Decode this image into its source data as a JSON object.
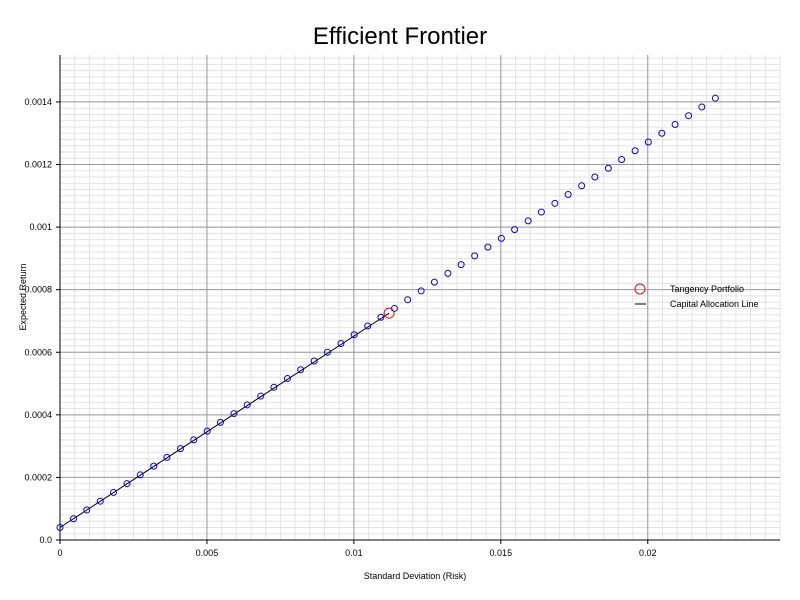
{
  "chart_data": {
    "type": "scatter",
    "title": "Efficient Frontier",
    "xlabel": "Standard Deviation (Risk)",
    "ylabel": "Expected Return",
    "xlim": [
      0,
      0.0245
    ],
    "ylim": [
      0,
      0.00155
    ],
    "x_ticks": [
      0,
      0.005,
      0.01,
      0.015,
      0.02
    ],
    "x_tick_labels": [
      "0",
      "0.005",
      "0.01",
      "0.015",
      "0.02"
    ],
    "y_ticks": [
      0,
      0.0002,
      0.0004,
      0.0006,
      0.0008,
      0.001,
      0.0012,
      0.0014
    ],
    "y_tick_labels": [
      "0.0",
      "0.0002",
      "0.0004",
      "0.0006",
      "0.0008",
      "0.001",
      "0.0012",
      "0.0014"
    ],
    "grid": true,
    "legend_position": "right",
    "series": [
      {
        "kind": "frontier-points",
        "color": "#0000ff",
        "x": [
          0.0,
          0.00046,
          0.00091,
          0.00137,
          0.00182,
          0.00228,
          0.00273,
          0.00319,
          0.00364,
          0.0041,
          0.00455,
          0.00501,
          0.00546,
          0.00592,
          0.00637,
          0.00683,
          0.00728,
          0.00774,
          0.00819,
          0.00865,
          0.0091,
          0.00956,
          0.01001,
          0.01047,
          0.01092,
          0.01138,
          0.01183,
          0.01229,
          0.01274,
          0.0132,
          0.01365,
          0.01411,
          0.01456,
          0.01502,
          0.01547,
          0.01593,
          0.01638,
          0.01684,
          0.01729,
          0.01775,
          0.0182,
          0.01866,
          0.01911,
          0.01957,
          0.02002,
          0.02048,
          0.02093,
          0.02139,
          0.02184,
          0.0223
        ],
        "y": [
          4e-05,
          6.8e-05,
          9.6e-05,
          0.000124,
          0.000152,
          0.00018,
          0.000208,
          0.000236,
          0.000264,
          0.000292,
          0.00032,
          0.000348,
          0.000376,
          0.000404,
          0.000432,
          0.00046,
          0.000488,
          0.000516,
          0.000544,
          0.000572,
          0.0006,
          0.000628,
          0.000656,
          0.000684,
          0.000712,
          0.00074,
          0.000768,
          0.000796,
          0.000824,
          0.000852,
          0.00088,
          0.000908,
          0.000936,
          0.000964,
          0.000992,
          0.00102,
          0.001048,
          0.001076,
          0.001104,
          0.001132,
          0.00116,
          0.001188,
          0.001216,
          0.001244,
          0.001272,
          0.0013,
          0.001328,
          0.001356,
          0.001384,
          0.001412
        ]
      },
      {
        "name": "Tangency Portfolio",
        "kind": "tangency",
        "color": "#ff0000",
        "x": [
          0.0112
        ],
        "y": [
          0.000725
        ]
      },
      {
        "name": "Capital Allocation Line",
        "kind": "cal-line",
        "color": "#000000",
        "x": [
          0,
          0.0112
        ],
        "y": [
          4e-05,
          0.000725
        ]
      }
    ]
  }
}
